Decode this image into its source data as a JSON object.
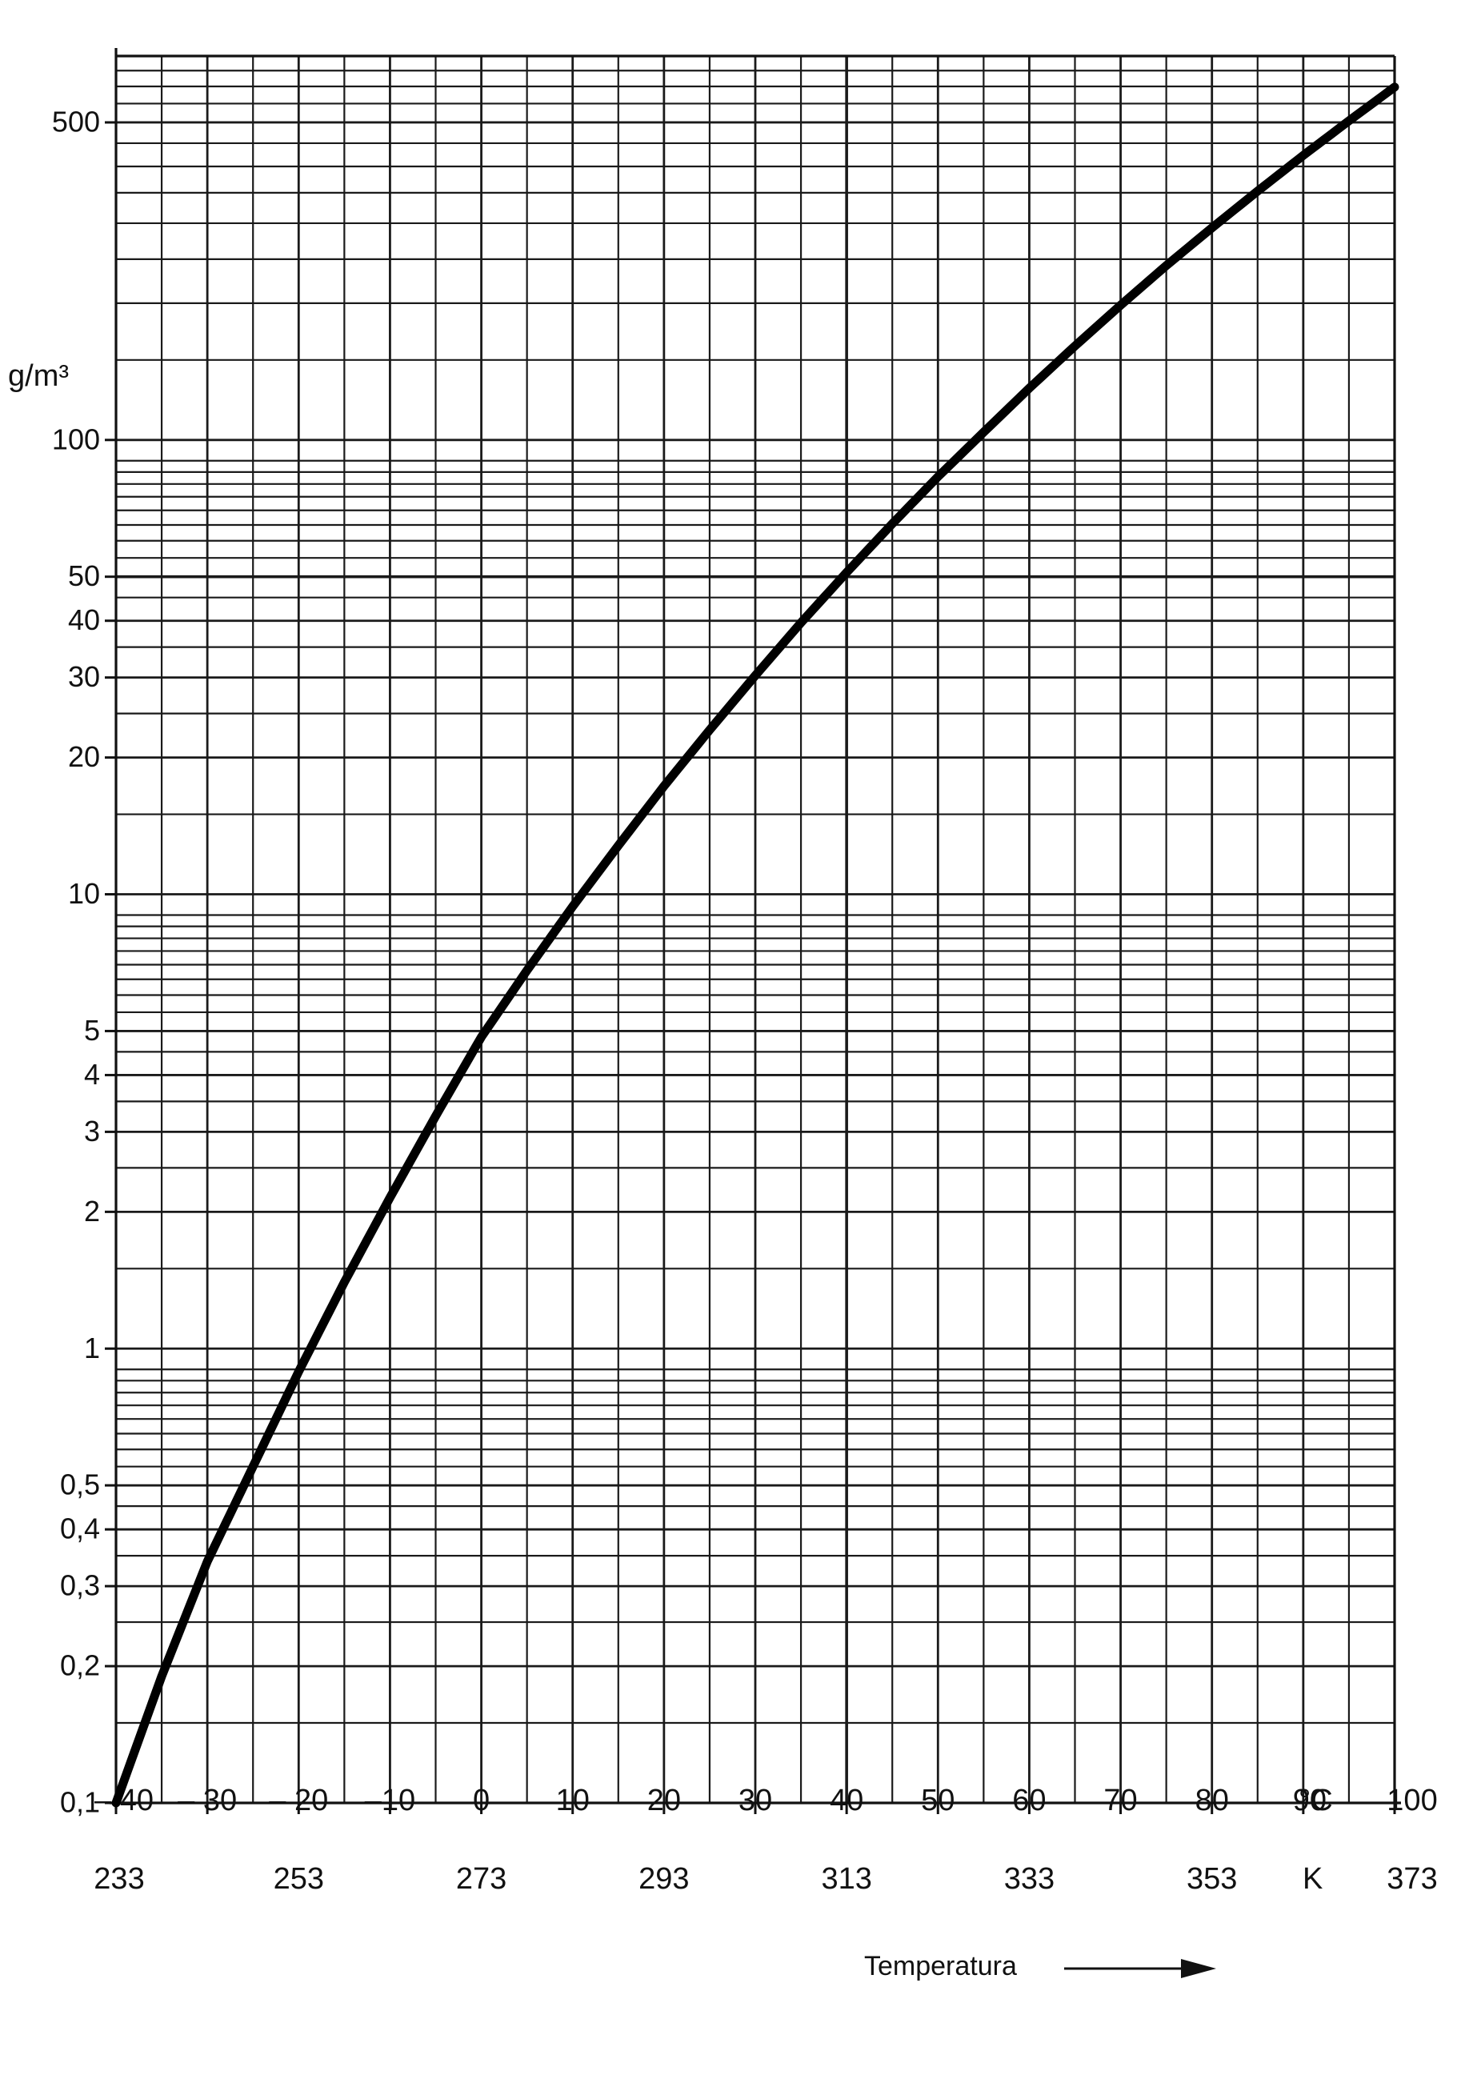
{
  "chart_data": {
    "type": "line",
    "title": "",
    "xlabel": "Temperatura",
    "ylabel": "g/m³",
    "y_scale": "log",
    "ylim": [
      0.1,
      700
    ],
    "xlim": [
      -40,
      100
    ],
    "grid": true,
    "x_unit_celsius": "°C",
    "x_unit_kelvin": "K",
    "y_tick_labels": [
      {
        "value": 0.1,
        "label": "0,1"
      },
      {
        "value": 0.2,
        "label": "0,2"
      },
      {
        "value": 0.3,
        "label": "0,3"
      },
      {
        "value": 0.4,
        "label": "0,4"
      },
      {
        "value": 0.5,
        "label": "0,5"
      },
      {
        "value": 1,
        "label": "1"
      },
      {
        "value": 2,
        "label": "2"
      },
      {
        "value": 3,
        "label": "3"
      },
      {
        "value": 4,
        "label": "4"
      },
      {
        "value": 5,
        "label": "5"
      },
      {
        "value": 10,
        "label": "10"
      },
      {
        "value": 20,
        "label": "20"
      },
      {
        "value": 30,
        "label": "30"
      },
      {
        "value": 40,
        "label": "40"
      },
      {
        "value": 50,
        "label": "50"
      },
      {
        "value": 100,
        "label": "100"
      },
      {
        "value": 500,
        "label": "500"
      }
    ],
    "x_ticks_celsius": [
      {
        "value": -40,
        "label": "– 40"
      },
      {
        "value": -30,
        "label": "– 30"
      },
      {
        "value": -20,
        "label": "– 20"
      },
      {
        "value": -10,
        "label": "–10"
      },
      {
        "value": 0,
        "label": "0"
      },
      {
        "value": 10,
        "label": "10"
      },
      {
        "value": 20,
        "label": "20"
      },
      {
        "value": 30,
        "label": "30"
      },
      {
        "value": 40,
        "label": "40"
      },
      {
        "value": 50,
        "label": "50"
      },
      {
        "value": 60,
        "label": "60"
      },
      {
        "value": 70,
        "label": "70"
      },
      {
        "value": 80,
        "label": "80"
      },
      {
        "value": 90,
        "label": "90"
      },
      {
        "value": 100,
        "label": "100"
      }
    ],
    "x_ticks_kelvin": [
      {
        "value": -40,
        "label": "233"
      },
      {
        "value": -20,
        "label": "253"
      },
      {
        "value": 0,
        "label": "273"
      },
      {
        "value": 20,
        "label": "293"
      },
      {
        "value": 40,
        "label": "313"
      },
      {
        "value": 60,
        "label": "333"
      },
      {
        "value": 80,
        "label": "353"
      },
      {
        "value": 100,
        "label": "373"
      }
    ],
    "series": [
      {
        "x": [
          -40,
          -35,
          -30,
          -25,
          -20,
          -15,
          -10,
          -5,
          0,
          5,
          10,
          15,
          20,
          25,
          30,
          35,
          40,
          45,
          50,
          55,
          60,
          65,
          70,
          75,
          80,
          85,
          90,
          95,
          100
        ],
        "values": [
          0.1,
          0.19,
          0.34,
          0.55,
          0.89,
          1.4,
          2.15,
          3.25,
          4.85,
          6.8,
          9.4,
          12.8,
          17.3,
          23.0,
          30.3,
          39.6,
          51.1,
          65.4,
          83.0,
          104,
          130,
          161,
          198,
          242,
          293,
          353,
          423,
          504,
          598
        ]
      }
    ],
    "emphasized_gridlines": {
      "y": 50,
      "x": 40
    }
  }
}
